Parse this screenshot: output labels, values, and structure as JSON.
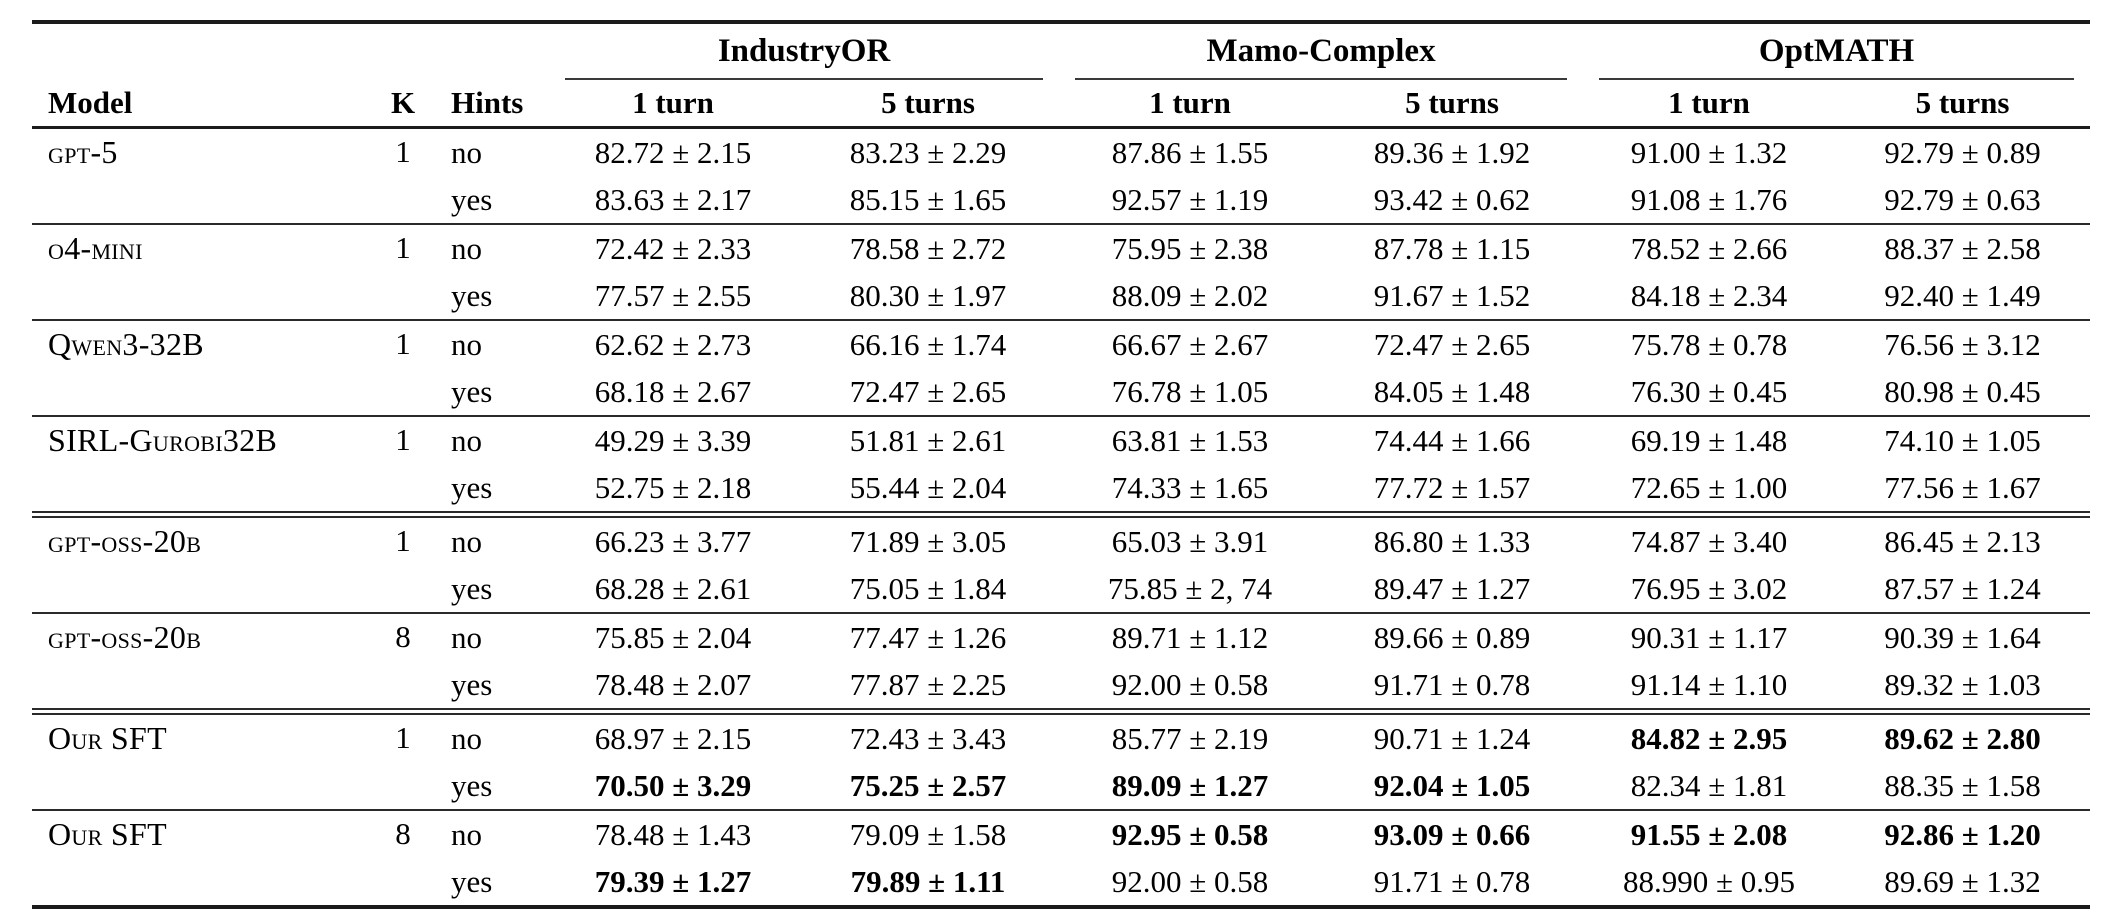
{
  "colors": {
    "text": "#000000",
    "rule": "#1b1b1b",
    "background": "#ffffff"
  },
  "table": {
    "groups": [
      "IndustryOR",
      "Mamo-Complex",
      "OptMATH"
    ],
    "col_headers": {
      "model": "Model",
      "k": "K",
      "hints": "Hints",
      "turn1": "1 turn",
      "turn5": "5 turns"
    },
    "rows": [
      {
        "model": "gpt-5",
        "k": "1",
        "rule": null,
        "lines": [
          {
            "hints": "no",
            "values": [
              "82.72 ± 2.15",
              "83.23 ± 2.29",
              "87.86 ± 1.55",
              "89.36 ± 1.92",
              "91.00 ± 1.32",
              "92.79 ± 0.89"
            ],
            "bold": [
              false,
              false,
              false,
              false,
              false,
              false
            ]
          },
          {
            "hints": "yes",
            "values": [
              "83.63 ± 2.17",
              "85.15 ± 1.65",
              "92.57 ± 1.19",
              "93.42 ± 0.62",
              "91.08 ± 1.76",
              "92.79 ± 0.63"
            ],
            "bold": [
              false,
              false,
              false,
              false,
              false,
              false
            ]
          }
        ]
      },
      {
        "model": "o4-mini",
        "k": "1",
        "rule": "single",
        "lines": [
          {
            "hints": "no",
            "values": [
              "72.42 ± 2.33",
              "78.58 ± 2.72",
              "75.95 ± 2.38",
              "87.78 ± 1.15",
              "78.52 ± 2.66",
              "88.37 ± 2.58"
            ],
            "bold": [
              false,
              false,
              false,
              false,
              false,
              false
            ]
          },
          {
            "hints": "yes",
            "values": [
              "77.57 ± 2.55",
              "80.30 ± 1.97",
              "88.09 ± 2.02",
              "91.67 ± 1.52",
              "84.18 ± 2.34",
              "92.40 ± 1.49"
            ],
            "bold": [
              false,
              false,
              false,
              false,
              false,
              false
            ]
          }
        ]
      },
      {
        "model": "Qwen3-32B",
        "k": "1",
        "rule": "single",
        "lines": [
          {
            "hints": "no",
            "values": [
              "62.62 ± 2.73",
              "66.16 ± 1.74",
              "66.67 ± 2.67",
              "72.47 ± 2.65",
              "75.78 ± 0.78",
              "76.56 ± 3.12"
            ],
            "bold": [
              false,
              false,
              false,
              false,
              false,
              false
            ]
          },
          {
            "hints": "yes",
            "values": [
              "68.18 ± 2.67",
              "72.47 ± 2.65",
              "76.78 ± 1.05",
              "84.05 ± 1.48",
              "76.30 ± 0.45",
              "80.98 ± 0.45"
            ],
            "bold": [
              false,
              false,
              false,
              false,
              false,
              false
            ]
          }
        ]
      },
      {
        "model": "SIRL-Gurobi32B",
        "k": "1",
        "rule": "single",
        "lines": [
          {
            "hints": "no",
            "values": [
              "49.29 ± 3.39",
              "51.81 ± 2.61",
              "63.81 ± 1.53",
              "74.44 ± 1.66",
              "69.19 ± 1.48",
              "74.10 ± 1.05"
            ],
            "bold": [
              false,
              false,
              false,
              false,
              false,
              false
            ]
          },
          {
            "hints": "yes",
            "values": [
              "52.75 ± 2.18",
              "55.44 ± 2.04",
              "74.33 ± 1.65",
              "77.72 ± 1.57",
              "72.65 ± 1.00",
              "77.56 ± 1.67"
            ],
            "bold": [
              false,
              false,
              false,
              false,
              false,
              false
            ]
          }
        ]
      },
      {
        "model": "gpt-oss-20b",
        "k": "1",
        "rule": "double",
        "lines": [
          {
            "hints": "no",
            "values": [
              "66.23 ± 3.77",
              "71.89 ± 3.05",
              "65.03 ± 3.91",
              "86.80 ± 1.33",
              "74.87 ± 3.40",
              "86.45 ± 2.13"
            ],
            "bold": [
              false,
              false,
              false,
              false,
              false,
              false
            ]
          },
          {
            "hints": "yes",
            "values": [
              "68.28 ± 2.61",
              "75.05 ± 1.84",
              "75.85 ± 2, 74",
              "89.47 ± 1.27",
              "76.95 ± 3.02",
              "87.57 ± 1.24"
            ],
            "bold": [
              false,
              false,
              false,
              false,
              false,
              false
            ]
          }
        ]
      },
      {
        "model": "gpt-oss-20b",
        "k": "8",
        "rule": "single",
        "lines": [
          {
            "hints": "no",
            "values": [
              "75.85 ± 2.04",
              "77.47 ± 1.26",
              "89.71 ± 1.12",
              "89.66 ± 0.89",
              "90.31 ± 1.17",
              "90.39 ± 1.64"
            ],
            "bold": [
              false,
              false,
              false,
              false,
              false,
              false
            ]
          },
          {
            "hints": "yes",
            "values": [
              "78.48 ± 2.07",
              "77.87 ± 2.25",
              "92.00 ± 0.58",
              "91.71 ± 0.78",
              "91.14 ± 1.10",
              "89.32 ± 1.03"
            ],
            "bold": [
              false,
              false,
              false,
              false,
              false,
              false
            ]
          }
        ]
      },
      {
        "model": "Our SFT",
        "k": "1",
        "rule": "double",
        "lines": [
          {
            "hints": "no",
            "values": [
              "68.97 ± 2.15",
              "72.43 ± 3.43",
              "85.77 ± 2.19",
              "90.71 ± 1.24",
              "84.82 ± 2.95",
              "89.62 ± 2.80"
            ],
            "bold": [
              false,
              false,
              false,
              false,
              true,
              true
            ]
          },
          {
            "hints": "yes",
            "values": [
              "70.50 ± 3.29",
              "75.25 ± 2.57",
              "89.09 ± 1.27",
              "92.04 ± 1.05",
              "82.34 ± 1.81",
              "88.35 ± 1.58"
            ],
            "bold": [
              true,
              true,
              true,
              true,
              false,
              false
            ]
          }
        ]
      },
      {
        "model": "Our SFT",
        "k": "8",
        "rule": "single",
        "lines": [
          {
            "hints": "no",
            "values": [
              "78.48 ± 1.43",
              "79.09 ± 1.58",
              "92.95 ± 0.58",
              "93.09 ± 0.66",
              "91.55 ± 2.08",
              "92.86 ± 1.20"
            ],
            "bold": [
              false,
              false,
              true,
              true,
              true,
              true
            ]
          },
          {
            "hints": "yes",
            "values": [
              "79.39 ± 1.27",
              "79.89 ± 1.11",
              "92.00 ± 0.58",
              "91.71 ± 0.78",
              "88.990 ± 0.95",
              "89.69 ± 1.32"
            ],
            "bold": [
              true,
              true,
              false,
              false,
              false,
              false
            ]
          }
        ]
      }
    ]
  }
}
